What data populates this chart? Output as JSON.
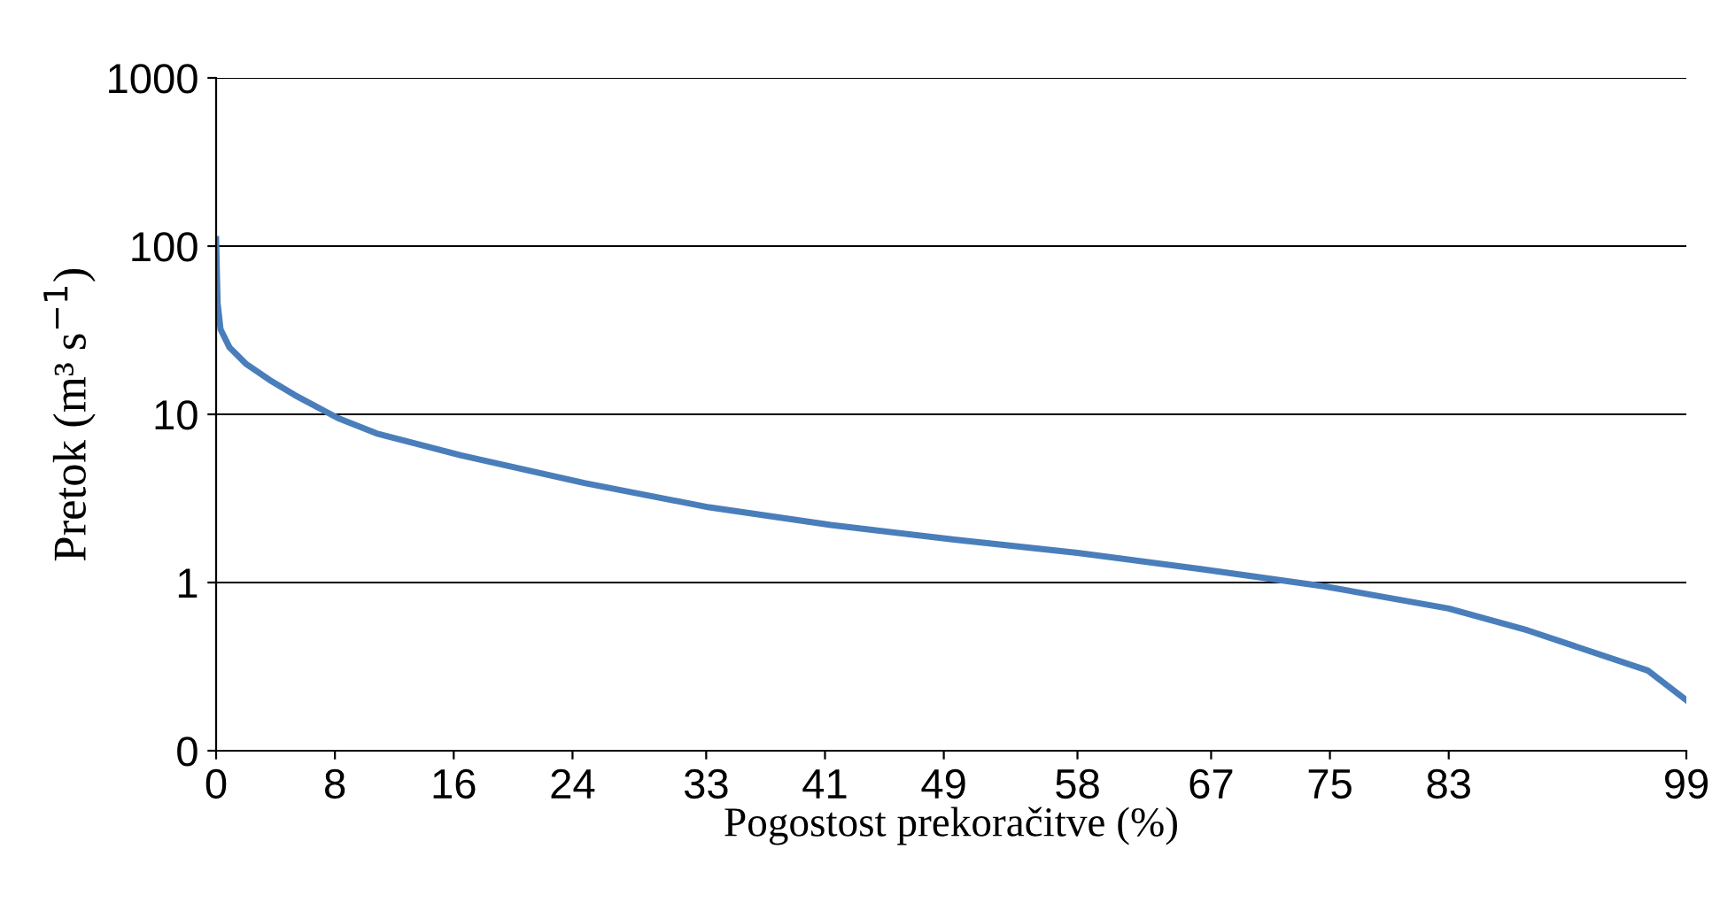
{
  "chart_data": {
    "type": "line",
    "xlabel": "Pogostost prekoračitve (%)",
    "ylabel": "Pretok (m³ s$^{−1}$)",
    "series": [
      {
        "color": "#4a7ebb",
        "x": [
          0,
          0.1,
          0.3,
          0.9,
          2,
          3.6,
          5.3,
          8.2,
          10.8,
          16.5,
          24.8,
          33.2,
          41.4,
          49.7,
          58,
          66.4,
          74.6,
          83,
          88.3,
          96.4,
          99
        ],
        "values": [
          110,
          46,
          32,
          25,
          20,
          16,
          13,
          9.5,
          7.7,
          5.7,
          3.9,
          2.8,
          2.2,
          1.8,
          1.5,
          1.2,
          0.95,
          0.7,
          0.52,
          0.3,
          0.2
        ]
      }
    ],
    "log": "y",
    "xlim": [
      0,
      99
    ],
    "ylim": [
      0.1,
      1000
    ],
    "xticks": [
      0,
      8,
      16,
      24,
      33,
      41,
      49,
      58,
      67,
      75,
      83,
      99
    ],
    "yticks": [
      {
        "value": 0.1,
        "label": "0"
      },
      1,
      10,
      100,
      1000
    ],
    "grid": "y",
    "line_style": "solid",
    "marker": "none"
  }
}
